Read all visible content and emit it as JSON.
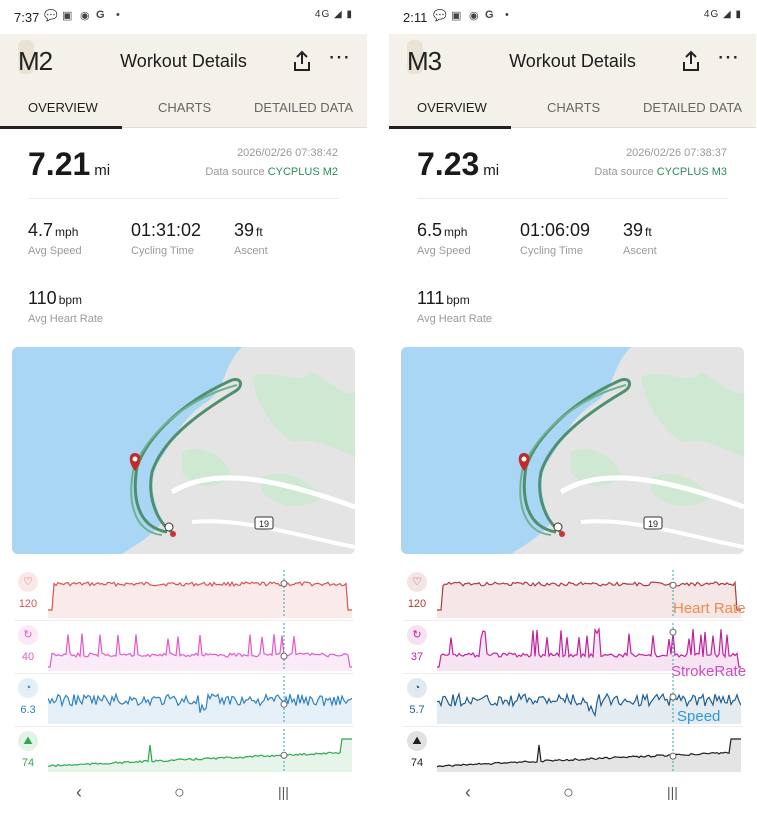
{
  "phones": [
    {
      "status": {
        "time": "7:37",
        "right": "4G ◢ ▮"
      },
      "logo": "M2",
      "title": "Workout Details",
      "tabs": [
        "OVERVIEW",
        "CHARTS",
        "DETAILED DATA"
      ],
      "distance": "7.21",
      "distance_unit": "mi",
      "date": "2026/02/26 07:38:42",
      "data_source_label": "Data source",
      "data_source": "CYCPLUS M2",
      "metrics": [
        {
          "value": "4.7",
          "unit": "mph",
          "label": "Avg Speed"
        },
        {
          "value": "01:31:02",
          "unit": "",
          "label": "Cycling Time"
        },
        {
          "value": "39",
          "unit": "ft",
          "label": "Ascent"
        },
        {
          "value": "110",
          "unit": "bpm",
          "label": "Avg Heart Rate"
        }
      ],
      "map_road": "19",
      "charts": [
        {
          "name": "heart-rate",
          "icon": "♡",
          "value": "120",
          "color": "#d9534f"
        },
        {
          "name": "stroke-rate",
          "icon": "↻",
          "value": "40",
          "color": "#e05cc8"
        },
        {
          "name": "speed",
          "icon": "◔",
          "value": "6.3",
          "color": "#2f82c4"
        },
        {
          "name": "elevation",
          "icon": "⛰",
          "value": "74",
          "color": "#2ea84f"
        }
      ],
      "overlays": []
    },
    {
      "status": {
        "time": "2:11",
        "right": "4G ◢ ▮"
      },
      "logo": "M3",
      "title": "Workout Details",
      "tabs": [
        "OVERVIEW",
        "CHARTS",
        "DETAILED DATA"
      ],
      "distance": "7.23",
      "distance_unit": "mi",
      "date": "2026/02/26 07:38:37",
      "data_source_label": "Data source",
      "data_source": "CYCPLUS M3",
      "metrics": [
        {
          "value": "6.5",
          "unit": "mph",
          "label": "Avg Speed"
        },
        {
          "value": "01:06:09",
          "unit": "",
          "label": "Cycling Time"
        },
        {
          "value": "39",
          "unit": "ft",
          "label": "Ascent"
        },
        {
          "value": "111",
          "unit": "bpm",
          "label": "Avg Heart Rate"
        }
      ],
      "map_road": "19",
      "charts": [
        {
          "name": "heart-rate",
          "icon": "♡",
          "value": "120",
          "color": "#b03a3a"
        },
        {
          "name": "stroke-rate",
          "icon": "↻",
          "value": "37",
          "color": "#c0229f"
        },
        {
          "name": "speed",
          "icon": "◔",
          "value": "5.7",
          "color": "#1f5f8f"
        },
        {
          "name": "elevation",
          "icon": "⛰",
          "value": "74",
          "color": "#1e1e1e"
        }
      ],
      "overlays": [
        {
          "text": "Heart Rate",
          "color": "#ee8a4a"
        },
        {
          "text": "StrokeRate",
          "color": "#c94fc0"
        },
        {
          "text": "Speed",
          "color": "#2c9ad8"
        }
      ]
    }
  ],
  "nav_icons": [
    "back-icon",
    "home-icon",
    "recents-icon"
  ]
}
